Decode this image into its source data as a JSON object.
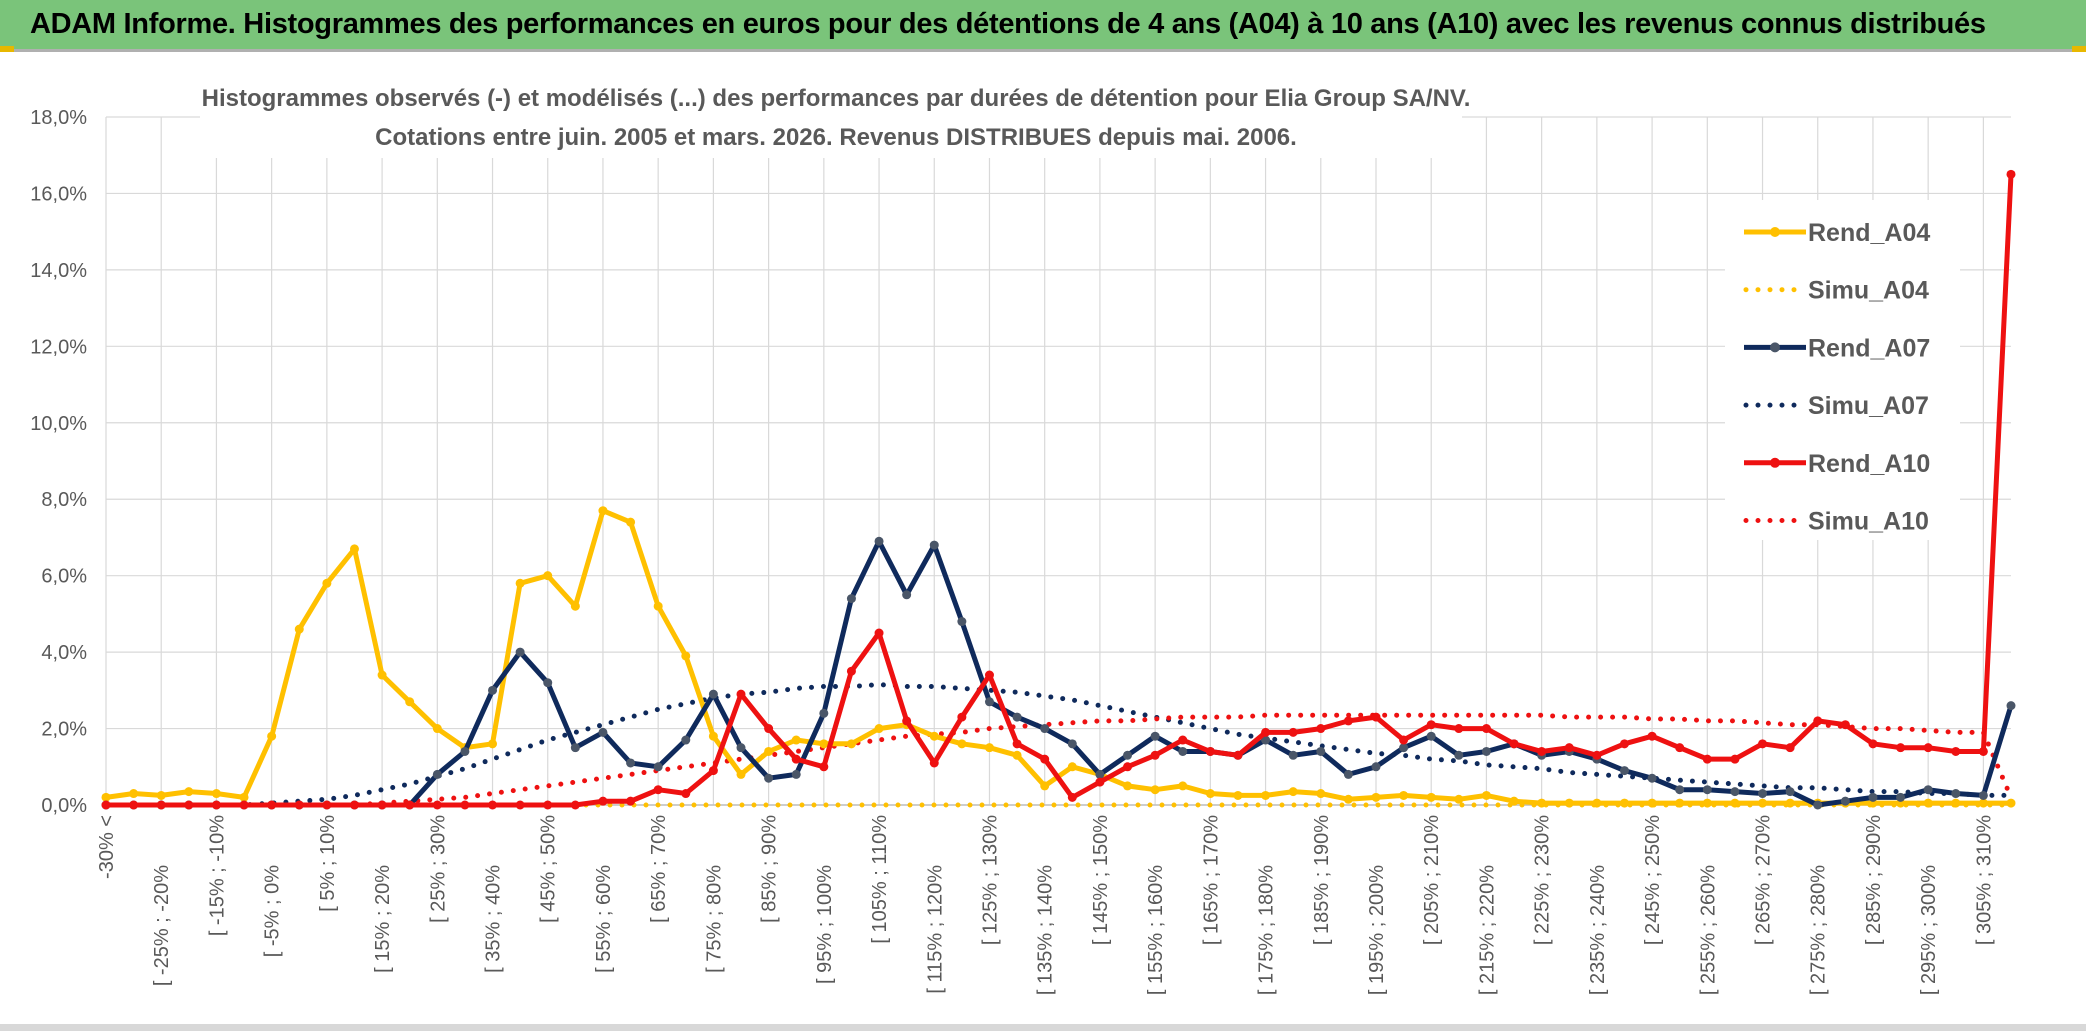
{
  "header": {
    "title": "ADAM Informe. Histogrammes des performances en euros pour des détentions de 4 ans (A04) à 10 ans (A10) avec les revenus connus distribués"
  },
  "colors": {
    "header_bg": "#7ac47a",
    "a04": "#ffc000",
    "a07": "#0f2a5c",
    "a07_marker": "#4a5668",
    "a10": "#ee1111",
    "grid": "#d9d9d9",
    "axis_text": "#595959"
  },
  "chart_data": {
    "type": "line",
    "title": "Histogrammes observés (-) et modélisés (...) des performances par durées de détention pour Elia Group SA/NV.",
    "subtitle": "Cotations entre juin. 2005 et mars. 2026. Revenus DISTRIBUES depuis mai. 2006.",
    "xlabel": "",
    "ylabel": "",
    "ylim": [
      0,
      18
    ],
    "y_unit": "%",
    "y_ticks": [
      "0,0%",
      "2,0%",
      "4,0%",
      "6,0%",
      "8,0%",
      "10,0%",
      "12,0%",
      "14,0%",
      "16,0%",
      "18,0%"
    ],
    "grid": true,
    "legend_position": "right",
    "category_count": 70,
    "x_tick_labels": [
      {
        "index": 0,
        "label": "-30% <"
      },
      {
        "index": 2,
        "label": "[ -25% ; -20%"
      },
      {
        "index": 4,
        "label": "[ -15% ; -10%"
      },
      {
        "index": 6,
        "label": "[ -5% ; 0%"
      },
      {
        "index": 8,
        "label": "[ 5% ; 10%"
      },
      {
        "index": 10,
        "label": "[ 15% ; 20%"
      },
      {
        "index": 12,
        "label": "[ 25% ; 30%"
      },
      {
        "index": 14,
        "label": "[ 35% ; 40%"
      },
      {
        "index": 16,
        "label": "[ 45% ; 50%"
      },
      {
        "index": 18,
        "label": "[ 55% ; 60%"
      },
      {
        "index": 20,
        "label": "[ 65% ; 70%"
      },
      {
        "index": 22,
        "label": "[ 75% ; 80%"
      },
      {
        "index": 24,
        "label": "[ 85% ; 90%"
      },
      {
        "index": 26,
        "label": "[ 95% ; 100%"
      },
      {
        "index": 28,
        "label": "[ 105% ; 110%"
      },
      {
        "index": 30,
        "label": "[ 115% ; 120%"
      },
      {
        "index": 32,
        "label": "[ 125% ; 130%"
      },
      {
        "index": 34,
        "label": "[ 135% ; 140%"
      },
      {
        "index": 36,
        "label": "[ 145% ; 150%"
      },
      {
        "index": 38,
        "label": "[ 155% ; 160%"
      },
      {
        "index": 40,
        "label": "[ 165% ; 170%"
      },
      {
        "index": 42,
        "label": "[ 175% ; 180%"
      },
      {
        "index": 44,
        "label": "[ 185% ; 190%"
      },
      {
        "index": 46,
        "label": "[ 195% ; 200%"
      },
      {
        "index": 48,
        "label": "[ 205% ; 210%"
      },
      {
        "index": 50,
        "label": "[ 215% ; 220%"
      },
      {
        "index": 52,
        "label": "[ 225% ; 230%"
      },
      {
        "index": 54,
        "label": "[ 235% ; 240%"
      },
      {
        "index": 56,
        "label": "[ 245% ; 250%"
      },
      {
        "index": 58,
        "label": "[ 255% ; 260%"
      },
      {
        "index": 60,
        "label": "[ 265% ; 270%"
      },
      {
        "index": 62,
        "label": "[ 275% ; 280%"
      },
      {
        "index": 64,
        "label": "[ 285% ; 290%"
      },
      {
        "index": 66,
        "label": "[ 295% ; 300%"
      },
      {
        "index": 68,
        "label": "[ 305% ; 310%"
      }
    ],
    "series": [
      {
        "name": "Rend_A04",
        "style": "solid",
        "color": "#ffc000",
        "values": [
          0.2,
          0.3,
          0.25,
          0.35,
          0.3,
          0.2,
          1.8,
          4.6,
          5.8,
          6.7,
          3.4,
          2.7,
          2.0,
          1.5,
          1.6,
          5.8,
          6.0,
          5.2,
          7.7,
          7.4,
          5.2,
          3.9,
          1.8,
          0.8,
          1.4,
          1.7,
          1.6,
          1.6,
          2.0,
          2.1,
          1.8,
          1.6,
          1.5,
          1.3,
          0.5,
          1.0,
          0.8,
          0.5,
          0.4,
          0.5,
          0.3,
          0.25,
          0.25,
          0.35,
          0.3,
          0.15,
          0.2,
          0.25,
          0.2,
          0.15,
          0.25,
          0.1,
          0.05,
          0.05,
          0.05,
          0.05,
          0.05,
          0.05,
          0.05,
          0.05,
          0.05,
          0.05,
          0.05,
          0.05,
          0.05,
          0.05,
          0.05,
          0.05,
          0.05,
          0.05
        ]
      },
      {
        "name": "Simu_A04",
        "style": "dotted",
        "color": "#ffc000",
        "values": [
          0,
          0,
          0,
          0,
          0,
          0,
          0,
          0,
          0,
          0,
          0,
          0,
          0,
          0,
          0,
          0,
          0,
          0,
          0,
          0,
          0,
          0,
          0,
          0,
          0,
          0,
          0,
          0,
          0,
          0,
          0,
          0,
          0,
          0,
          0,
          0,
          0,
          0,
          0,
          0,
          0,
          0,
          0,
          0,
          0,
          0,
          0,
          0,
          0,
          0,
          0,
          0,
          0,
          0,
          0,
          0,
          0,
          0,
          0,
          0,
          0,
          0,
          0,
          0,
          0,
          0,
          0,
          0,
          0,
          0
        ]
      },
      {
        "name": "Rend_A07",
        "style": "solid",
        "color": "#0f2a5c",
        "values": [
          0,
          0,
          0,
          0,
          0,
          0,
          0,
          0,
          0,
          0,
          0,
          0,
          0.8,
          1.4,
          3.0,
          4.0,
          3.2,
          1.5,
          1.9,
          1.1,
          1.0,
          1.7,
          2.9,
          1.5,
          0.7,
          0.8,
          2.4,
          5.4,
          6.9,
          5.5,
          6.8,
          4.8,
          2.7,
          2.3,
          2.0,
          1.6,
          0.8,
          1.3,
          1.8,
          1.4,
          1.4,
          1.3,
          1.7,
          1.3,
          1.4,
          0.8,
          1.0,
          1.5,
          1.8,
          1.3,
          1.4,
          1.6,
          1.3,
          1.4,
          1.2,
          0.9,
          0.7,
          0.4,
          0.4,
          0.35,
          0.3,
          0.35,
          0.0,
          0.1,
          0.2,
          0.2,
          0.4,
          0.3,
          0.25,
          2.6
        ]
      },
      {
        "name": "Simu_A07",
        "style": "dotted",
        "color": "#0f2a5c",
        "values": [
          0,
          0,
          0,
          0,
          0,
          0,
          0.05,
          0.1,
          0.15,
          0.25,
          0.4,
          0.55,
          0.75,
          0.95,
          1.2,
          1.45,
          1.7,
          1.9,
          2.1,
          2.3,
          2.5,
          2.65,
          2.8,
          2.9,
          2.95,
          3.05,
          3.1,
          3.1,
          3.15,
          3.1,
          3.1,
          3.05,
          3.0,
          2.95,
          2.85,
          2.75,
          2.6,
          2.45,
          2.3,
          2.15,
          2.0,
          1.85,
          1.75,
          1.65,
          1.55,
          1.45,
          1.35,
          1.3,
          1.2,
          1.15,
          1.05,
          1.0,
          0.95,
          0.85,
          0.8,
          0.75,
          0.7,
          0.65,
          0.6,
          0.55,
          0.5,
          0.45,
          0.45,
          0.4,
          0.35,
          0.35,
          0.3,
          0.3,
          0.25,
          0.25
        ]
      },
      {
        "name": "Rend_A10",
        "style": "solid",
        "color": "#ee1111",
        "values": [
          0,
          0,
          0,
          0,
          0,
          0,
          0,
          0,
          0,
          0,
          0,
          0,
          0,
          0,
          0,
          0,
          0,
          0,
          0.1,
          0.1,
          0.4,
          0.3,
          0.9,
          2.9,
          2.0,
          1.2,
          1.0,
          3.5,
          4.5,
          2.2,
          1.1,
          2.3,
          3.4,
          1.6,
          1.2,
          0.2,
          0.6,
          1.0,
          1.3,
          1.7,
          1.4,
          1.3,
          1.9,
          1.9,
          2.0,
          2.2,
          2.3,
          1.7,
          2.1,
          2.0,
          2.0,
          1.6,
          1.4,
          1.5,
          1.3,
          1.6,
          1.8,
          1.5,
          1.2,
          1.2,
          1.6,
          1.5,
          2.2,
          2.1,
          1.6,
          1.5,
          1.5,
          1.4,
          1.4,
          16.5
        ]
      },
      {
        "name": "Simu_A10",
        "style": "dotted",
        "color": "#ee1111",
        "values": [
          0,
          0,
          0,
          0,
          0,
          0,
          0,
          0,
          0,
          0,
          0.05,
          0.1,
          0.15,
          0.2,
          0.3,
          0.4,
          0.5,
          0.6,
          0.7,
          0.8,
          0.9,
          1.0,
          1.1,
          1.2,
          1.3,
          1.4,
          1.5,
          1.6,
          1.7,
          1.8,
          1.85,
          1.9,
          2.0,
          2.05,
          2.1,
          2.15,
          2.2,
          2.2,
          2.25,
          2.3,
          2.3,
          2.3,
          2.35,
          2.35,
          2.35,
          2.35,
          2.35,
          2.35,
          2.35,
          2.35,
          2.35,
          2.35,
          2.35,
          2.3,
          2.3,
          2.3,
          2.25,
          2.25,
          2.2,
          2.2,
          2.15,
          2.1,
          2.1,
          2.05,
          2.0,
          2.0,
          1.95,
          1.9,
          1.9,
          0.2
        ]
      }
    ]
  }
}
